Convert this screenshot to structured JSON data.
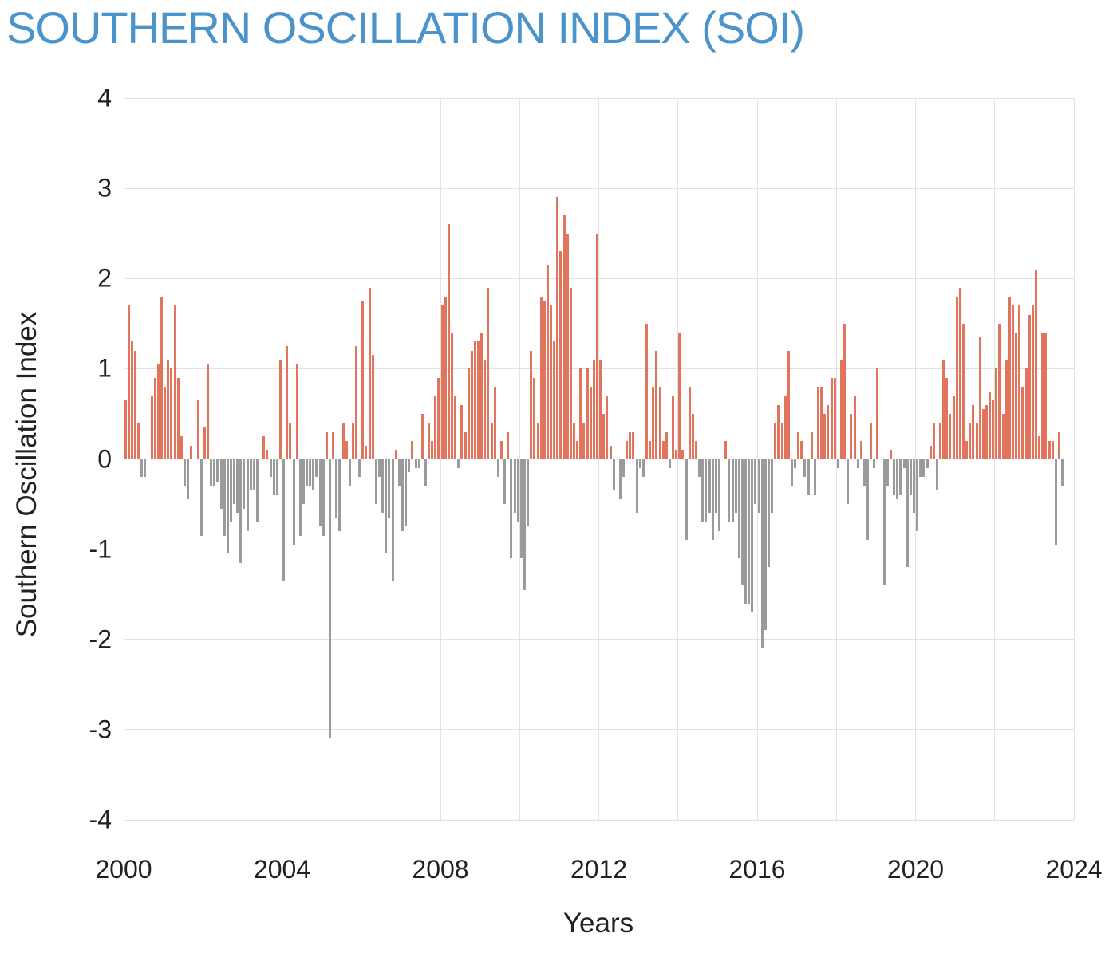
{
  "title": "SOUTHERN OSCILLATION INDEX (SOI)",
  "colors": {
    "title_blue": "#4b94cb",
    "positive_bar": "#e0745c",
    "negative_bar": "#9b9b9b",
    "gridline": "#e2e2e2",
    "axis_text": "#212121",
    "background": "#ffffff"
  },
  "chart_data": {
    "type": "bar",
    "title": "SOUTHERN OSCILLATION INDEX (SOI)",
    "xlabel": "Years",
    "ylabel": "Southern Oscillation Index",
    "ylim": [
      -4,
      4
    ],
    "y_ticks": [
      4,
      3,
      2,
      1,
      0,
      -1,
      -2,
      -3,
      -4
    ],
    "x_ticks": [
      2000,
      2004,
      2008,
      2012,
      2016,
      2020,
      2024
    ],
    "x_range_years": [
      2000,
      2024
    ],
    "x_gridline_step_years": 2,
    "grid": true,
    "legend": "none",
    "frequency": "monthly",
    "series_start": "2000-01",
    "series_end": "2023-09",
    "positive_color": "#e0745c",
    "negative_color": "#9b9b9b",
    "values": [
      0.65,
      1.7,
      1.3,
      1.2,
      0.4,
      -0.2,
      -0.2,
      0,
      0.7,
      0.9,
      1.05,
      1.8,
      0.8,
      1.1,
      1.0,
      1.7,
      0.9,
      0.25,
      -0.3,
      -0.45,
      0.15,
      0,
      0.65,
      -0.85,
      0.35,
      1.05,
      -0.3,
      -0.3,
      -0.25,
      -0.55,
      -0.85,
      -1.05,
      -0.7,
      -0.5,
      -0.6,
      -1.15,
      -0.55,
      -0.8,
      -0.35,
      -0.35,
      -0.7,
      0,
      0.25,
      0.1,
      -0.2,
      -0.4,
      -0.4,
      1.1,
      -1.35,
      1.25,
      0.4,
      -0.95,
      1.05,
      -0.85,
      -0.5,
      -0.3,
      -0.3,
      -0.35,
      -0.2,
      -0.75,
      -0.85,
      0.3,
      -3.1,
      0.3,
      -0.65,
      -0.8,
      0.4,
      0.2,
      -0.3,
      0.4,
      1.25,
      -0.2,
      1.75,
      0.15,
      1.9,
      1.15,
      -0.5,
      -0.2,
      -0.6,
      -1.05,
      -0.65,
      -1.35,
      0.1,
      -0.3,
      -0.8,
      -0.75,
      -0.15,
      0.2,
      -0.1,
      -0.1,
      0.5,
      -0.3,
      0.4,
      0.2,
      0.7,
      0.9,
      1.7,
      1.8,
      2.6,
      1.4,
      0.7,
      -0.1,
      0.6,
      0.3,
      1.0,
      1.2,
      1.3,
      1.3,
      1.4,
      1.1,
      1.9,
      0.4,
      0.8,
      -0.2,
      0.2,
      -0.5,
      0.3,
      -1.1,
      -0.6,
      -0.7,
      -1.1,
      -1.45,
      -0.75,
      1.2,
      0.9,
      0.4,
      1.8,
      1.75,
      2.15,
      1.7,
      1.3,
      2.9,
      2.3,
      2.7,
      2.5,
      1.9,
      0.4,
      0.2,
      1.0,
      0.4,
      1.0,
      0.8,
      1.1,
      2.5,
      1.1,
      0.5,
      0.7,
      0.15,
      -0.35,
      0,
      -0.45,
      -0.2,
      0.2,
      0.3,
      0.3,
      -0.6,
      -0.1,
      -0.2,
      1.5,
      0.2,
      0.8,
      1.2,
      0.8,
      0.2,
      0.3,
      -0.1,
      0.7,
      0.1,
      1.4,
      0.1,
      -0.9,
      0.8,
      0.5,
      0.2,
      -0.2,
      -0.7,
      -0.7,
      -0.6,
      -0.9,
      -0.6,
      -0.8,
      0,
      0.2,
      -0.7,
      -0.7,
      -0.6,
      -1.1,
      -1.4,
      -1.6,
      -1.6,
      -1.7,
      -0.5,
      -0.6,
      -2.1,
      -1.9,
      -1.2,
      -0.6,
      0.4,
      0.6,
      0.4,
      0.7,
      1.2,
      -0.3,
      -0.1,
      0.3,
      0.2,
      -0.2,
      -0.4,
      0.3,
      -0.4,
      0.8,
      0.8,
      0.5,
      0.6,
      0.9,
      0.9,
      -0.1,
      1.1,
      1.5,
      -0.5,
      0.5,
      0.7,
      -0.1,
      0.2,
      -0.3,
      -0.9,
      0.4,
      -0.1,
      1.0,
      0,
      -1.4,
      -0.3,
      0.1,
      -0.4,
      -0.45,
      -0.4,
      -0.1,
      -1.2,
      -0.4,
      -0.6,
      -0.8,
      -0.2,
      -0.2,
      -0.1,
      0.15,
      0.4,
      -0.35,
      0.4,
      1.1,
      0.9,
      0.5,
      0.7,
      1.8,
      1.9,
      1.5,
      0.2,
      0.4,
      0.6,
      0.4,
      1.35,
      0.55,
      0.6,
      0.75,
      0.65,
      1.0,
      1.5,
      0.5,
      1.1,
      1.8,
      1.7,
      1.4,
      1.7,
      0.8,
      1.0,
      1.6,
      1.7,
      2.1,
      0.25,
      1.4,
      1.4,
      0.2,
      0.2,
      -0.95,
      0.3,
      -0.3
    ]
  }
}
